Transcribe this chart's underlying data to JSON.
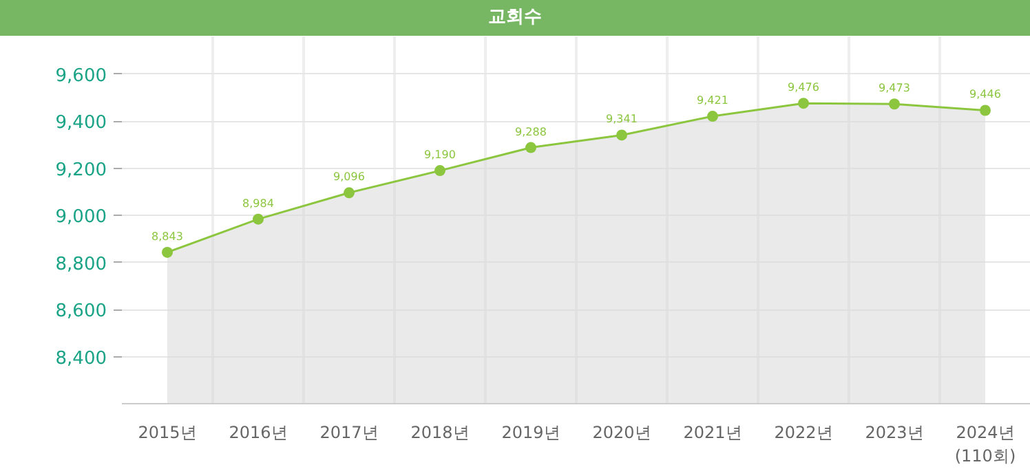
{
  "chart_data": {
    "type": "area",
    "title": "교회수",
    "categories": [
      "2015년",
      "2016년",
      "2017년",
      "2018년",
      "2019년",
      "2020년",
      "2021년",
      "2022년",
      "2023년",
      "2024년\n(110회)"
    ],
    "series": [
      {
        "color": "#8cc63f",
        "values": [
          8843,
          8984,
          9096,
          9190,
          9288,
          9341,
          9421,
          9476,
          9473,
          9446
        ]
      }
    ],
    "ylim": [
      8200,
      9760
    ],
    "yticks": [
      {
        "value": 8400,
        "label": "8,400"
      },
      {
        "value": 8600,
        "label": "8,600"
      },
      {
        "value": 8800,
        "label": "8,800"
      },
      {
        "value": 9000,
        "label": "9,000"
      },
      {
        "value": 9200,
        "label": "9,200"
      },
      {
        "value": 9400,
        "label": "9,400"
      },
      {
        "value": 9600,
        "label": "9,600"
      }
    ],
    "grid": true,
    "marker": "circle",
    "value_labels": [
      "8,843",
      "8,984",
      "9,096",
      "9,190",
      "9,288",
      "9,341",
      "9,421",
      "9,476",
      "9,473",
      "9,446"
    ]
  }
}
